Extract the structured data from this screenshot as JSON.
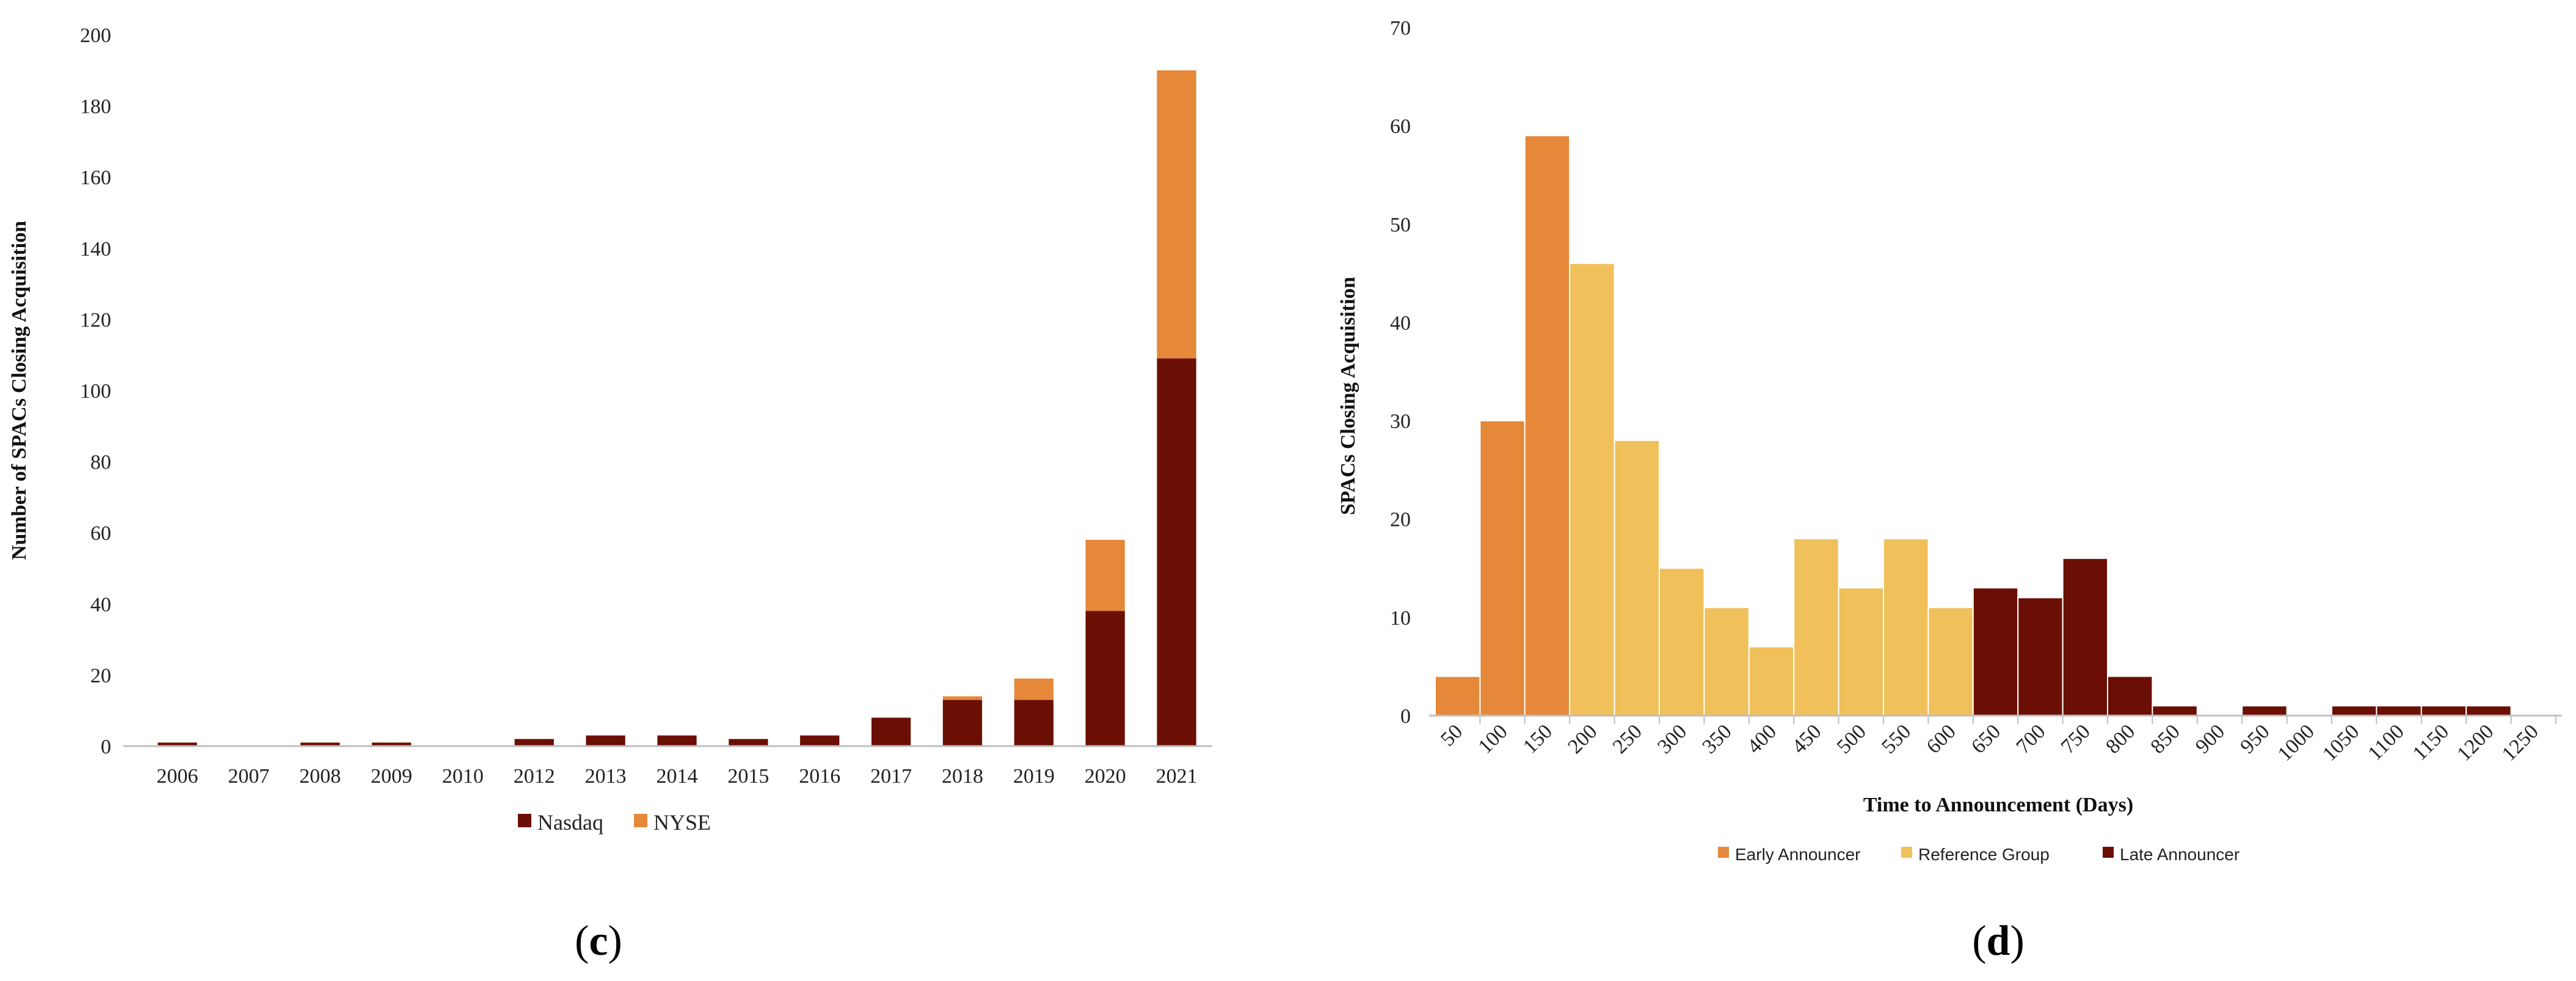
{
  "colors": {
    "nasdaq": "#6B0F04",
    "nyse": "#E5883A",
    "early": "#E5883A",
    "reference": "#F0C05A",
    "late": "#6B0F04",
    "axis": "#bfbfbf"
  },
  "chart_data": [
    {
      "type": "bar",
      "stacked": true,
      "panel_label": "(c)",
      "panel_label_parts": {
        "open": "(",
        "letter": "c",
        "close": ")"
      },
      "title": "",
      "xlabel": "",
      "ylabel": "Number of SPACs Closing Acquisition",
      "ylim": [
        0,
        200
      ],
      "yticks": [
        0,
        20,
        40,
        60,
        80,
        100,
        120,
        140,
        160,
        180,
        200
      ],
      "categories": [
        "2006",
        "2007",
        "2008",
        "2009",
        "2010",
        "2012",
        "2013",
        "2014",
        "2015",
        "2016",
        "2017",
        "2018",
        "2019",
        "2020",
        "2021"
      ],
      "series": [
        {
          "name": "Nasdaq",
          "color": "#6B0F04",
          "values": [
            1,
            0,
            1,
            1,
            0,
            2,
            3,
            3,
            2,
            3,
            8,
            13,
            13,
            38,
            109
          ]
        },
        {
          "name": "NYSE",
          "color": "#E5883A",
          "values": [
            0,
            0,
            0,
            0,
            0,
            0,
            0,
            0,
            0,
            0,
            0,
            1,
            6,
            20,
            81
          ]
        }
      ],
      "legend": {
        "placement": "bottom",
        "entries": [
          "Nasdaq",
          "NYSE"
        ]
      },
      "grid": false
    },
    {
      "type": "bar",
      "histogram": true,
      "panel_label": "(d)",
      "panel_label_parts": {
        "open": "(",
        "letter": "d",
        "close": ")"
      },
      "title": "",
      "xlabel": "Time to Announcement (Days)",
      "ylabel": "SPACs Closing Acquisition",
      "ylim": [
        0,
        70
      ],
      "yticks": [
        0,
        10,
        20,
        30,
        40,
        50,
        60,
        70
      ],
      "categories": [
        "50",
        "100",
        "150",
        "200",
        "250",
        "300",
        "350",
        "400",
        "450",
        "500",
        "550",
        "600",
        "650",
        "700",
        "750",
        "800",
        "850",
        "900",
        "950",
        "1000",
        "1050",
        "1100",
        "1150",
        "1200",
        "1250"
      ],
      "values": [
        4,
        30,
        59,
        46,
        28,
        15,
        11,
        7,
        18,
        13,
        18,
        11,
        13,
        12,
        16,
        4,
        1,
        0,
        1,
        0,
        1,
        1,
        1,
        1,
        0
      ],
      "groups": [
        "early",
        "early",
        "early",
        "reference",
        "reference",
        "reference",
        "reference",
        "reference",
        "reference",
        "reference",
        "reference",
        "reference",
        "late",
        "late",
        "late",
        "late",
        "late",
        "late",
        "late",
        "late",
        "late",
        "late",
        "late",
        "late",
        "late"
      ],
      "legend": {
        "placement": "bottom",
        "entries": [
          {
            "key": "early",
            "label": "Early Announcer"
          },
          {
            "key": "reference",
            "label": "Reference Group"
          },
          {
            "key": "late",
            "label": "Late Announcer"
          }
        ]
      },
      "grid": false
    }
  ]
}
